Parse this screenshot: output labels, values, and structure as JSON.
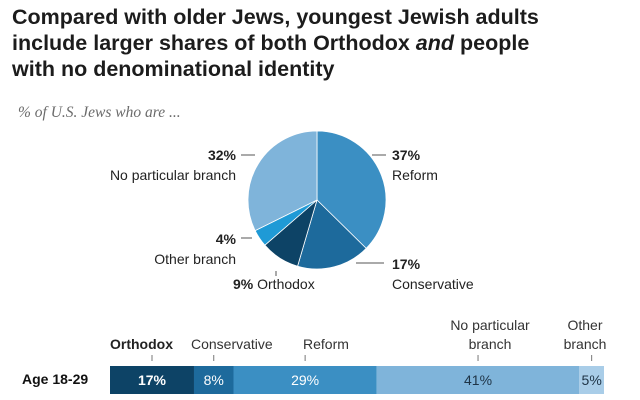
{
  "title_parts": {
    "line1": "Compared with older Jews, youngest Jewish adults",
    "line2": "include larger shares of both Orthodox ",
    "line2_em": "and",
    "line2_end": " people",
    "line3": "with no denominational identity"
  },
  "subtitle": "% of U.S. Jews who are ...",
  "colors": {
    "reform": "#3b8fc3",
    "conservative": "#1d6a9c",
    "orthodox": "#0d4366",
    "other": "#1f9ad6",
    "no_branch": "#7fb4da"
  },
  "chart_data": [
    {
      "type": "pie",
      "slices": [
        {
          "name": "Reform",
          "value": 37,
          "label": "37%",
          "color": "#3b8fc3"
        },
        {
          "name": "Conservative",
          "value": 17,
          "label": "17%",
          "color": "#1d6a9c"
        },
        {
          "name": "Orthodox",
          "value": 9,
          "label": "9%",
          "color": "#0d4366"
        },
        {
          "name": "Other branch",
          "value": 4,
          "label": "4%",
          "color": "#1f9ad6"
        },
        {
          "name": "No particular branch",
          "value": 32,
          "label": "32%",
          "color": "#7fb4da"
        }
      ],
      "pie_labels": {
        "reform": {
          "pct": "37%",
          "name": "Reform"
        },
        "conservative": {
          "pct": "17%",
          "name": "Conservative"
        },
        "orthodox": {
          "pct": "9%",
          "name": "Orthodox"
        },
        "other": {
          "pct": "4%",
          "name": "Other branch"
        },
        "no_branch": {
          "pct": "32%",
          "name": "No particular branch"
        }
      }
    },
    {
      "type": "bar",
      "orientation": "horizontal-stacked",
      "row_label": "Age 18-29",
      "categories": [
        "Orthodox",
        "Conservative",
        "Reform",
        "No particular branch",
        "Other branch"
      ],
      "category_labels": {
        "orthodox": "Orthodox",
        "conservative": "Conservative",
        "reform": "Reform",
        "no_branch_1": "No particular",
        "no_branch_2": "branch",
        "other_1": "Other",
        "other_2": "branch"
      },
      "values": [
        17,
        8,
        29,
        41,
        5
      ],
      "value_labels": [
        "17%",
        "8%",
        "29%",
        "41%",
        "5%"
      ],
      "colors": [
        "#0d4366",
        "#1d6a9c",
        "#3b8fc3",
        "#7fb4da",
        "#a9cde8"
      ]
    }
  ]
}
